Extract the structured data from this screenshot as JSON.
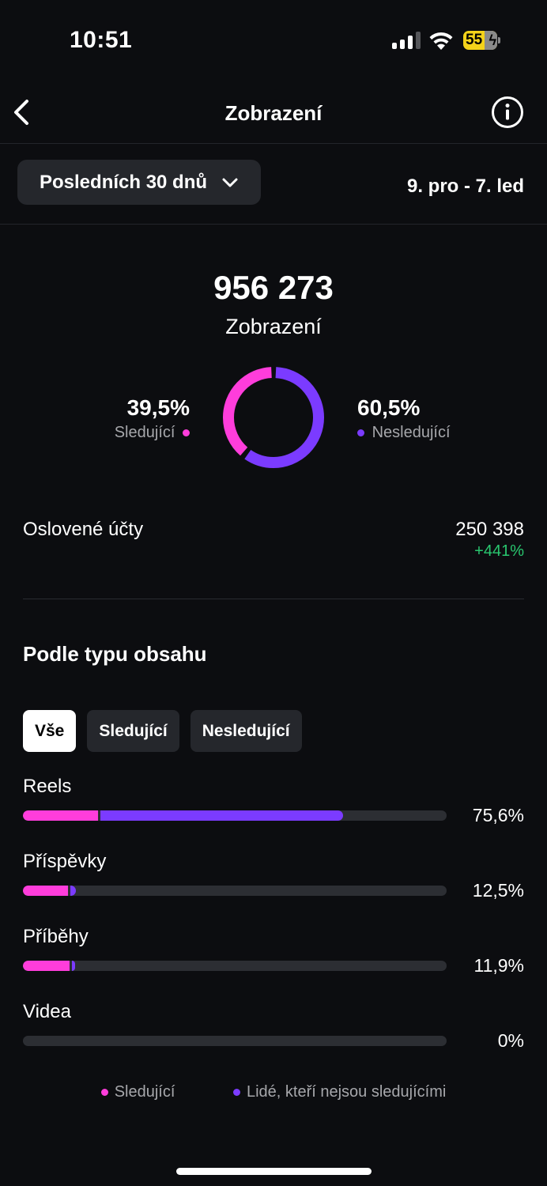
{
  "status_bar": {
    "time": "10:51",
    "battery": "55"
  },
  "header": {
    "title": "Zobrazení"
  },
  "period": {
    "selector_label": "Posledních 30 dnů",
    "date_range": "9. pro - 7. led"
  },
  "summary": {
    "total": "956 273",
    "total_label": "Zobrazení",
    "followers_pct_text": "39,5%",
    "followers_label": "Sledující",
    "non_followers_pct_text": "60,5%",
    "non_followers_label": "Nesledující",
    "donut": {
      "followers_fraction": 0.395,
      "non_followers_fraction": 0.605
    }
  },
  "reach": {
    "label": "Oslovené účty",
    "value": "250 398",
    "change": "+441%"
  },
  "by_content": {
    "title": "Podle typu obsahu",
    "filters": [
      "Vše",
      "Sledující",
      "Nesledující"
    ],
    "rows": [
      {
        "label": "Reels",
        "pct": "75,6%",
        "followers_fraction": 0.178,
        "non_followers_fraction": 0.578
      },
      {
        "label": "Příspěvky",
        "pct": "12,5%",
        "followers_fraction": 0.106,
        "non_followers_fraction": 0.019
      },
      {
        "label": "Příběhy",
        "pct": "11,9%",
        "followers_fraction": 0.11,
        "non_followers_fraction": 0.009
      },
      {
        "label": "Videa",
        "pct": "0%",
        "followers_fraction": 0,
        "non_followers_fraction": 0
      }
    ]
  },
  "legend": {
    "followers": "Sledující",
    "non_followers": "Lidé, kteří nejsou sledujícími"
  },
  "colors": {
    "followers": "#ff3ddb",
    "non_followers": "#7b3bff",
    "positive": "#29c76f"
  }
}
